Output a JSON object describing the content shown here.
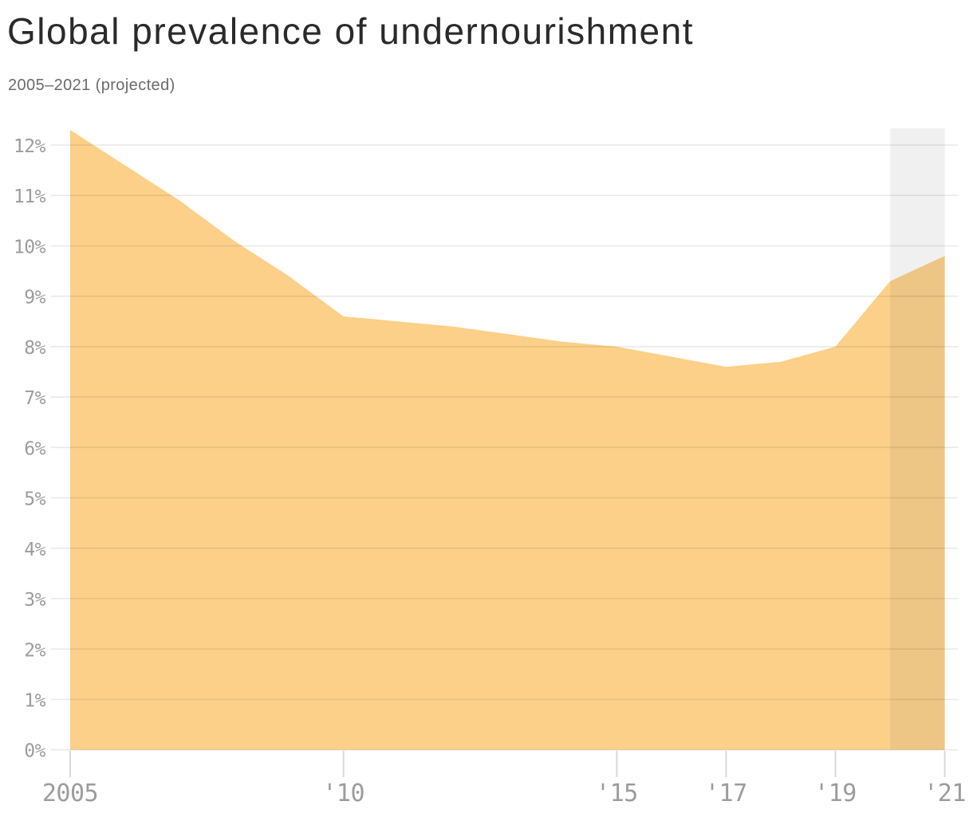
{
  "header": {
    "title": "Global prevalence of undernourishment",
    "subtitle": "2005–2021 (projected)"
  },
  "chart_data": {
    "type": "area",
    "title": "Global prevalence of undernourishment",
    "subtitle": "2005–2021 (projected)",
    "series_name": "Prevalence of undernourishment",
    "unit": "%",
    "x": [
      2005,
      2006,
      2007,
      2008,
      2009,
      2010,
      2011,
      2012,
      2013,
      2014,
      2015,
      2016,
      2017,
      2018,
      2019,
      2020,
      2021
    ],
    "values": [
      12.3,
      11.6,
      10.9,
      10.1,
      9.4,
      8.6,
      8.5,
      8.4,
      8.25,
      8.1,
      8.0,
      7.8,
      7.6,
      7.7,
      8.0,
      9.3,
      9.8
    ],
    "xlim": [
      2005,
      2021
    ],
    "ylim": [
      0,
      12.4
    ],
    "grid": "horizontal",
    "legend": "none",
    "yticks": [
      {
        "value": 0,
        "label": "0%"
      },
      {
        "value": 1,
        "label": "1%"
      },
      {
        "value": 2,
        "label": "2%"
      },
      {
        "value": 3,
        "label": "3%"
      },
      {
        "value": 4,
        "label": "4%"
      },
      {
        "value": 5,
        "label": "5%"
      },
      {
        "value": 6,
        "label": "6%"
      },
      {
        "value": 7,
        "label": "7%"
      },
      {
        "value": 8,
        "label": "8%"
      },
      {
        "value": 9,
        "label": "9%"
      },
      {
        "value": 10,
        "label": "10%"
      },
      {
        "value": 11,
        "label": "11%"
      },
      {
        "value": 12,
        "label": "12%"
      }
    ],
    "xticks": [
      {
        "value": 2005,
        "label": "2005"
      },
      {
        "value": 2010,
        "label": "'10"
      },
      {
        "value": 2015,
        "label": "'15"
      },
      {
        "value": 2017,
        "label": "'17"
      },
      {
        "value": 2019,
        "label": "'19"
      },
      {
        "value": 2021,
        "label": "'21"
      }
    ],
    "projected_band": {
      "from": 2020,
      "to": 2021,
      "meaning": "projected"
    },
    "colors": {
      "area": "#fcd088",
      "projected_band": "#f0f0f0",
      "band_overlay": "rgba(110,110,110,0.10)",
      "gridline": "#e9e9e9",
      "gridline_overlay": "rgba(40,40,40,0.10)",
      "x_tick": "#d9d9d9",
      "axis_label": "#9c9c9e",
      "title": "#2a2a2d",
      "subtitle": "#6b6b70"
    }
  }
}
